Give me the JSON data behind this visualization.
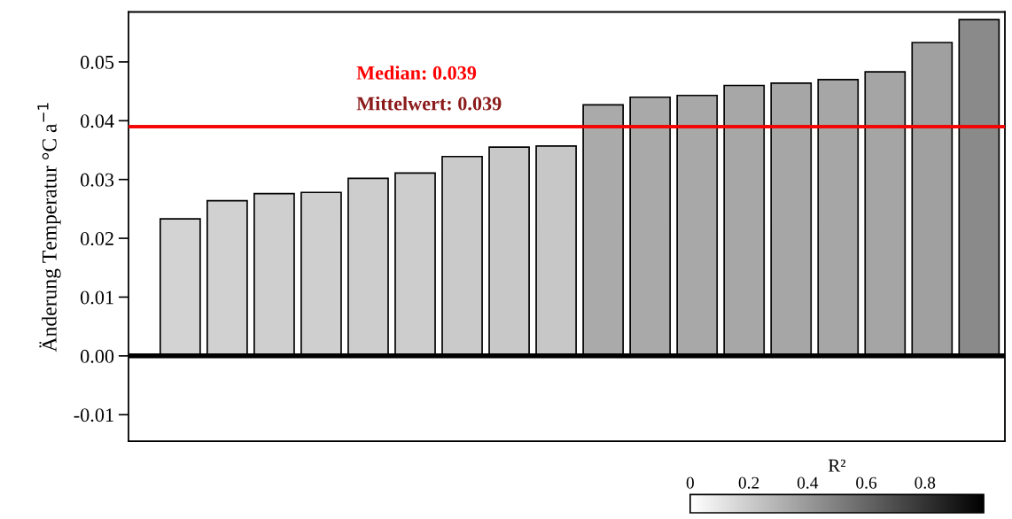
{
  "chart_data": {
    "type": "bar",
    "ylabel": "Änderung Temperatur °C a$^{−1}$",
    "categories": [
      null,
      null,
      null,
      null,
      null,
      null,
      null,
      null,
      null,
      null,
      null,
      null,
      null,
      null,
      null,
      null,
      null,
      null
    ],
    "values": [
      0.0233,
      0.0264,
      0.0276,
      0.0278,
      0.0302,
      0.0311,
      0.0339,
      0.0355,
      0.0357,
      0.0427,
      0.044,
      0.0443,
      0.046,
      0.0464,
      0.047,
      0.0483,
      0.0533,
      0.0572
    ],
    "colors": [
      "#d3d3d3",
      "#d1d1d1",
      "#cfcfcf",
      "#cfcfcf",
      "#cdcdcd",
      "#cdcdcd",
      "#cacaca",
      "#c8c8c8",
      "#c7c7c7",
      "#aaaaaa",
      "#a9a9a9",
      "#a8a8a8",
      "#a7a7a7",
      "#a6a6a6",
      "#a6a6a6",
      "#a5a5a5",
      "#a0a0a0",
      "#8a8a8a"
    ],
    "ylim": [
      -0.0145,
      0.0585
    ],
    "yticks": [
      {
        "value": -0.01,
        "label": "-0.01"
      },
      {
        "value": 0.0,
        "label": "0.00"
      },
      {
        "value": 0.01,
        "label": "0.01"
      },
      {
        "value": 0.02,
        "label": "0.02"
      },
      {
        "value": 0.03,
        "label": "0.03"
      },
      {
        "value": 0.04,
        "label": "0.04"
      },
      {
        "value": 0.05,
        "label": "0.05"
      }
    ],
    "tick_labels": "y",
    "ref_lines": [
      {
        "axis": "y",
        "value": 0,
        "color": "#000000"
      },
      {
        "axis": "y",
        "value": 0.039,
        "label": "Mittelwert: 0.039",
        "color": "#8b1a1a"
      },
      {
        "axis": "y",
        "value": 0.039,
        "label": "Median: 0.039",
        "color": "#ff0000"
      }
    ],
    "clabel": "R²",
    "clim": [
      0,
      1
    ],
    "cticks": [
      0,
      0.2,
      0.4,
      0.6,
      0.8
    ],
    "grid": false
  }
}
